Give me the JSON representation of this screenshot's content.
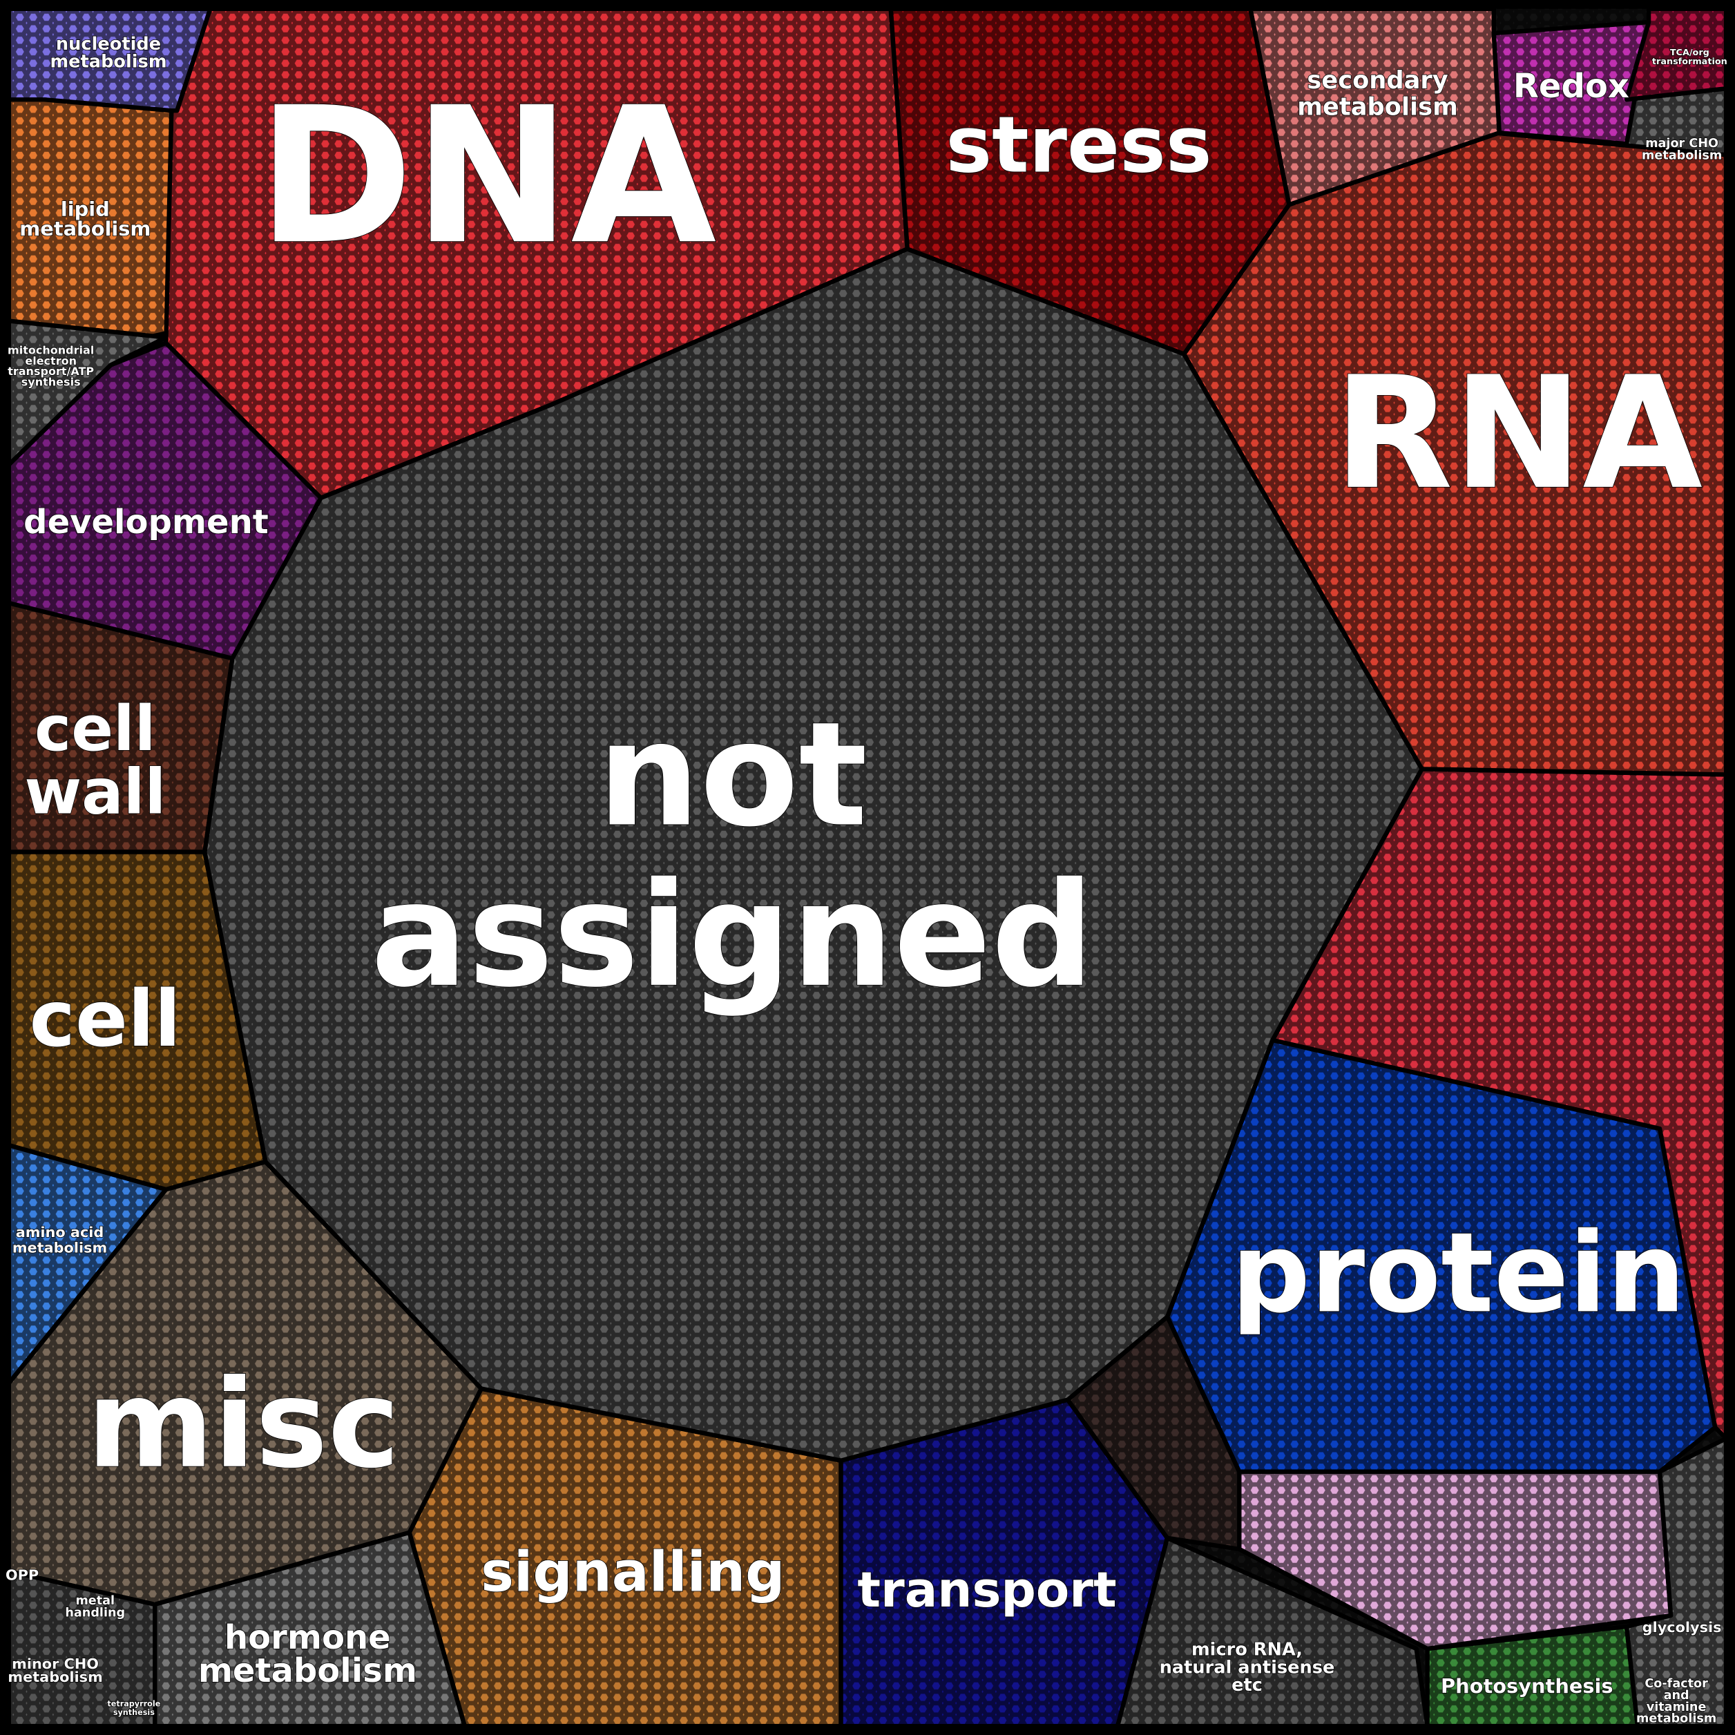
{
  "labels": {
    "dna": "DNA",
    "stress": "stress",
    "rna": "RNA",
    "not_assigned": [
      "not",
      "assigned"
    ],
    "nucleotide": [
      "nucleotide",
      "metabolism"
    ],
    "lipid": [
      "lipid",
      "metabolism"
    ],
    "mitochondrial": [
      "mitochondrial",
      "electron",
      "transport/ATP",
      "synthesis"
    ],
    "development": "development",
    "cell_wall": [
      "cell",
      "wall"
    ],
    "cell": "cell",
    "amino_acid": [
      "amino acid",
      "metabolism"
    ],
    "misc": "misc",
    "opp": "OPP",
    "metal": [
      "metal",
      "handling"
    ],
    "minor_cho": [
      "minor CHO",
      "metabolism"
    ],
    "hormone": [
      "hormone",
      "metabolism"
    ],
    "tetrapyrrole": [
      "tetrapyrrole",
      "synthesis"
    ],
    "signalling": "signalling",
    "transport": "transport",
    "micro_rna": [
      "micro RNA,",
      "natural antisense",
      "etc"
    ],
    "photosynthesis": "Photosynthesis",
    "cofactor": [
      "Co-factor",
      "and",
      "vitamine",
      "metabolism"
    ],
    "glycolysis": "glycolysis",
    "protein": "protein",
    "secondary": [
      "secondary",
      "metabolism"
    ],
    "redox": "Redox",
    "tca": [
      "TCA/org",
      "transformation"
    ],
    "major_cho": [
      "major CHO",
      "metabolism"
    ]
  }
}
